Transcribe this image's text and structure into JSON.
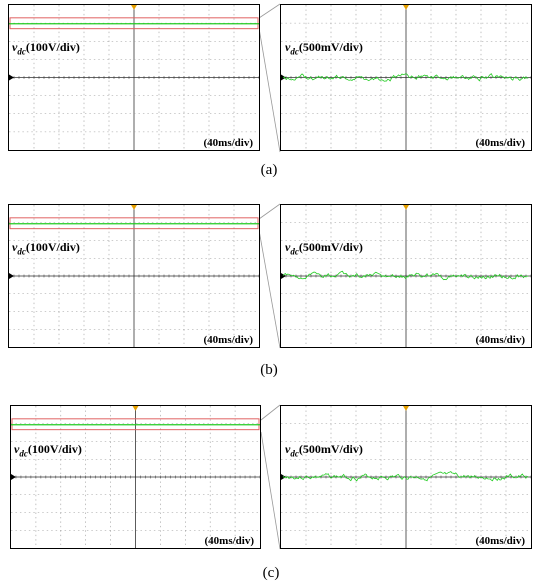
{
  "variable": {
    "symbol": "v",
    "subscript": "dc"
  },
  "panels": [
    {
      "caption": "(a)",
      "left_scale": "(100V/div)",
      "right_scale": "(500mV/div)",
      "time_scale_left": "(40ms/div)",
      "time_scale_right": "(40ms/div)"
    },
    {
      "caption": "(b)",
      "left_scale": "(100V/div)",
      "right_scale": "(500mV/div)",
      "time_scale_left": "(40ms/div)",
      "time_scale_right": "(40ms/div)"
    },
    {
      "caption": "(c)",
      "left_scale": "(100V/div)",
      "right_scale": "(500mV/div)",
      "time_scale_left": "(40ms/div)",
      "time_scale_right": "(40ms/div)"
    }
  ],
  "colors": {
    "trace": "#22cc22",
    "zoom_box": "#e06060",
    "grid": "#9a9a9a",
    "trigger_marker": "#e6a000"
  }
}
